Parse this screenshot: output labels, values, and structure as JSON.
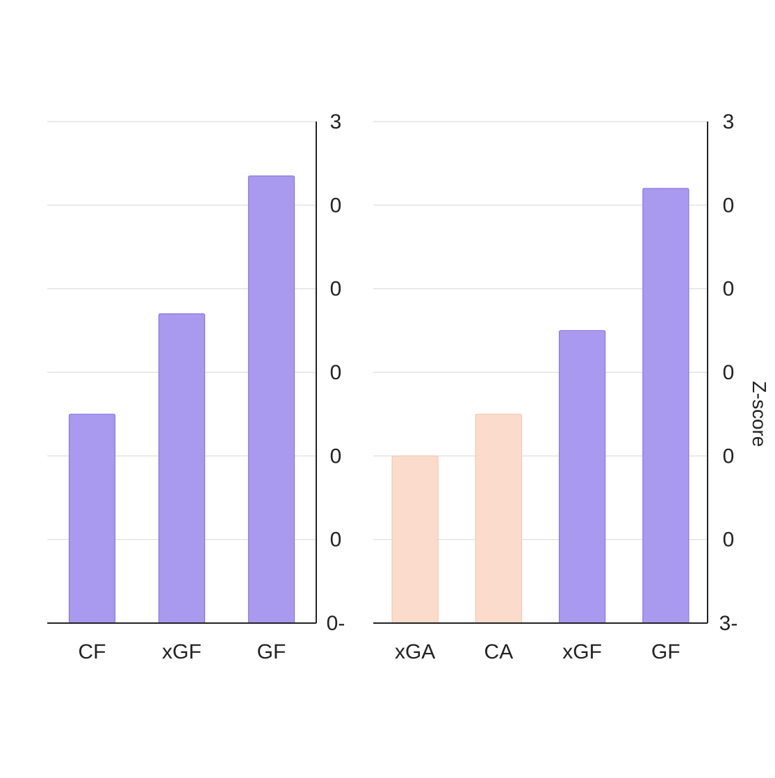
{
  "chart_data": [
    {
      "type": "bar",
      "title": "",
      "xlabel": "",
      "ylabel": "",
      "categories": [
        "CF",
        "xGF",
        "GF"
      ],
      "values": [
        2.5,
        3.7,
        5.35
      ],
      "bar_colors": [
        "#a99af0",
        "#a99af0",
        "#a99af0"
      ],
      "ylim": [
        0,
        6
      ],
      "y_tick_labels": [
        "0-",
        "0",
        "0",
        "0",
        "0",
        "0",
        "3"
      ],
      "grid": true,
      "y_axis_side": "right",
      "mirrored": true
    },
    {
      "type": "bar",
      "title": "",
      "xlabel": "",
      "ylabel": "Z-score",
      "categories": [
        "xGA",
        "CA",
        "xGF",
        "GF"
      ],
      "values": [
        -1.0,
        -0.5,
        0.5,
        2.2
      ],
      "bar_colors": [
        "#fbdccc",
        "#fbdccc",
        "#a99af0",
        "#a99af0"
      ],
      "ylim": [
        -3,
        3
      ],
      "y_tick_labels": [
        "3-",
        "0",
        "0",
        "0",
        "0",
        "0",
        "3"
      ],
      "grid": true,
      "y_axis_side": "right",
      "mirrored": true
    }
  ],
  "colors": {
    "positive_bar": "#a99af0",
    "negative_bar": "#fbdccc",
    "bar_edge_positive": "#8a78e0",
    "bar_edge_negative": "#f3c8b3"
  }
}
